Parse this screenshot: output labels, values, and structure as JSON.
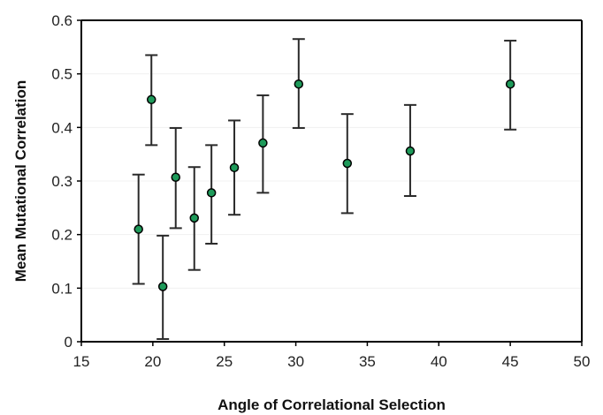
{
  "chart_data": {
    "type": "scatter",
    "title": "",
    "xlabel": "Angle of Correlational Selection",
    "ylabel": "Mean Mutational Correlation",
    "xlim": [
      15,
      50
    ],
    "ylim": [
      0,
      0.6
    ],
    "x_ticks": [
      15,
      20,
      25,
      30,
      35,
      40,
      45,
      50
    ],
    "y_ticks": [
      0,
      0.1,
      0.2,
      0.3,
      0.4,
      0.5,
      0.6
    ],
    "x_tick_labels": [
      "15",
      "20",
      "25",
      "30",
      "35",
      "40",
      "45",
      "50"
    ],
    "y_tick_labels": [
      "0",
      "0.1",
      "0.2",
      "0.3",
      "0.4",
      "0.5",
      "0.6"
    ],
    "grid": "horizontal, light",
    "legend": "none",
    "marker_color": "#1e9a5a",
    "points": [
      {
        "x": 19.0,
        "y": 0.21,
        "err_low": 0.108,
        "err_high": 0.312
      },
      {
        "x": 19.9,
        "y": 0.452,
        "err_low": 0.367,
        "err_high": 0.535
      },
      {
        "x": 20.7,
        "y": 0.103,
        "err_low": 0.005,
        "err_high": 0.198
      },
      {
        "x": 21.6,
        "y": 0.307,
        "err_low": 0.212,
        "err_high": 0.399
      },
      {
        "x": 22.9,
        "y": 0.231,
        "err_low": 0.134,
        "err_high": 0.326
      },
      {
        "x": 24.1,
        "y": 0.278,
        "err_low": 0.183,
        "err_high": 0.367
      },
      {
        "x": 25.7,
        "y": 0.325,
        "err_low": 0.237,
        "err_high": 0.413
      },
      {
        "x": 27.7,
        "y": 0.371,
        "err_low": 0.278,
        "err_high": 0.46
      },
      {
        "x": 30.2,
        "y": 0.481,
        "err_low": 0.399,
        "err_high": 0.565
      },
      {
        "x": 33.6,
        "y": 0.333,
        "err_low": 0.24,
        "err_high": 0.425
      },
      {
        "x": 38.0,
        "y": 0.356,
        "err_low": 0.272,
        "err_high": 0.442
      },
      {
        "x": 45.0,
        "y": 0.481,
        "err_low": 0.396,
        "err_high": 0.562
      }
    ]
  }
}
